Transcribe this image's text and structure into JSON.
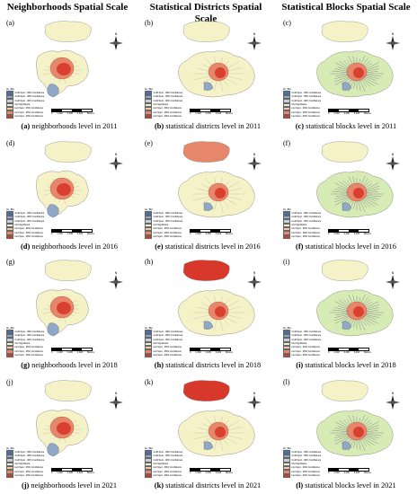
{
  "column_headers": [
    "Neighborhoods Spatial Scale",
    "Statistical Districts Spatial Scale",
    "Statistical Blocks Spatial Scale"
  ],
  "legend": {
    "title": "Gi_Bin",
    "items": [
      {
        "label": "Cold Spot - 99% Confidence",
        "color": "#4a6fa5"
      },
      {
        "label": "Cold Spot - 95% Confidence",
        "color": "#8fa8c8"
      },
      {
        "label": "Cold Spot - 90% Confidence",
        "color": "#c3d0e0"
      },
      {
        "label": "Not Significant",
        "color": "#f5f2c7"
      },
      {
        "label": "Hot Spot - 90% Confidence",
        "color": "#f2c9b0"
      },
      {
        "label": "Hot Spot - 95% Confidence",
        "color": "#e6876c"
      },
      {
        "label": "Hot Spot - 99% Confidence",
        "color": "#d7382a"
      }
    ]
  },
  "scale_ticks": [
    "0",
    "1,600",
    "3,200",
    "6,400"
  ],
  "scale_unit": "Meters",
  "north_label": "N",
  "panels": [
    {
      "letter": "(a)",
      "caption_letter": "(a)",
      "caption_text": " neighborhoods level in 2011",
      "inset_fill": "#f5f2c7",
      "base_fill": "#f5f2c7"
    },
    {
      "letter": "(b)",
      "caption_letter": "(b)",
      "caption_text": " statistical districts level in 2011",
      "inset_fill": "#f5f2c7",
      "base_fill": "#f5f2c7"
    },
    {
      "letter": "(c)",
      "caption_letter": "(c)",
      "caption_text": " statistical blocks level in 2011",
      "inset_fill": "#f5f2c7",
      "base_fill": "#d7ecb5"
    },
    {
      "letter": "(d)",
      "caption_letter": "(d)",
      "caption_text": " neighborhoods level in 2016",
      "inset_fill": "#f5f2c7",
      "base_fill": "#f5f2c7"
    },
    {
      "letter": "(e)",
      "caption_letter": "(e)",
      "caption_text": " statistical districts level in 2016",
      "inset_fill": "#e6876c",
      "base_fill": "#f5f2c7"
    },
    {
      "letter": "(f)",
      "caption_letter": "(f)",
      "caption_text": " statistical blocks level in 2016",
      "inset_fill": "#f5f2c7",
      "base_fill": "#d7ecb5"
    },
    {
      "letter": "(g)",
      "caption_letter": "(g)",
      "caption_text": " neighborhoods level in 2018",
      "inset_fill": "#f5f2c7",
      "base_fill": "#f5f2c7"
    },
    {
      "letter": "(h)",
      "caption_letter": "(h)",
      "caption_text": " statistical districts level in 2018",
      "inset_fill": "#d7382a",
      "base_fill": "#f5f2c7"
    },
    {
      "letter": "(i)",
      "caption_letter": "(i)",
      "caption_text": " statistical blocks level in 2018",
      "inset_fill": "#f5f2c7",
      "base_fill": "#d7ecb5"
    },
    {
      "letter": "(j)",
      "caption_letter": "(j)",
      "caption_text": " neighborhoods level in 2021",
      "inset_fill": "#f5f2c7",
      "base_fill": "#f5f2c7"
    },
    {
      "letter": "(k)",
      "caption_letter": "(k)",
      "caption_text": " statistical districts level in 2021",
      "inset_fill": "#d7382a",
      "base_fill": "#f5f2c7"
    },
    {
      "letter": "(l)",
      "caption_letter": "(l)",
      "caption_text": " statistical blocks level in 2021",
      "inset_fill": "#f5f2c7",
      "base_fill": "#d7ecb5"
    }
  ]
}
